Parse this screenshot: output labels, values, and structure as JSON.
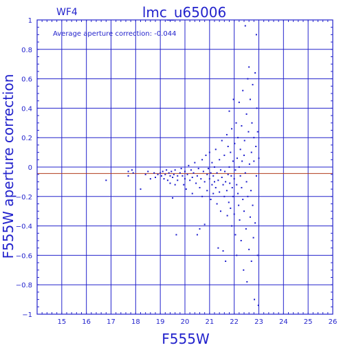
{
  "chart_data": {
    "type": "scatter",
    "panel_label": "WF4",
    "title": "lmc_u65006",
    "annotation": "Average aperture correction: -0.044",
    "average_correction": -0.044,
    "xlabel": "F555W",
    "ylabel": "F555W aperture correction",
    "xlim": [
      14,
      26
    ],
    "ylim": [
      -1,
      1
    ],
    "xticks": [
      15,
      16,
      17,
      18,
      19,
      20,
      21,
      22,
      23,
      24,
      25,
      26
    ],
    "yticks": [
      -1,
      -0.8,
      -0.6,
      -0.4,
      -0.2,
      0,
      0.2,
      0.4,
      0.6,
      0.8,
      1
    ],
    "ytick_labels": [
      "−1",
      "−0.8",
      "−0.6",
      "−0.4",
      "−0.2",
      "0",
      "0.2",
      "0.4",
      "0.6",
      "0.8",
      "1"
    ],
    "grid": true,
    "colors": {
      "axis": "#2222cc",
      "points": "#1a1acc",
      "mean_line": "#b03a1a"
    },
    "points": [
      [
        16.8,
        -0.09
      ],
      [
        17.7,
        -0.03
      ],
      [
        17.7,
        -0.06
      ],
      [
        17.85,
        -0.02
      ],
      [
        17.9,
        -0.04
      ],
      [
        18.2,
        -0.15
      ],
      [
        18.4,
        -0.05
      ],
      [
        18.5,
        -0.03
      ],
      [
        18.6,
        -0.08
      ],
      [
        18.75,
        -0.04
      ],
      [
        18.8,
        -0.07
      ],
      [
        18.9,
        -0.05
      ],
      [
        19.0,
        -0.04
      ],
      [
        19.05,
        -0.06
      ],
      [
        19.1,
        -0.03
      ],
      [
        19.15,
        -0.08
      ],
      [
        19.2,
        -0.05
      ],
      [
        19.25,
        -0.02
      ],
      [
        19.3,
        -0.09
      ],
      [
        19.35,
        -0.04
      ],
      [
        19.4,
        -0.06
      ],
      [
        19.4,
        -0.11
      ],
      [
        19.45,
        -0.03
      ],
      [
        19.5,
        -0.07
      ],
      [
        19.5,
        -0.21
      ],
      [
        19.55,
        -0.05
      ],
      [
        19.6,
        -0.12
      ],
      [
        19.6,
        -0.02
      ],
      [
        19.65,
        -0.46
      ],
      [
        19.7,
        -0.06
      ],
      [
        19.7,
        -0.09
      ],
      [
        19.8,
        -0.04
      ],
      [
        19.85,
        -0.01
      ],
      [
        19.9,
        -0.06
      ],
      [
        19.95,
        -0.12
      ],
      [
        20.0,
        -0.03
      ],
      [
        20.0,
        -0.08
      ],
      [
        20.05,
        -0.15
      ],
      [
        20.1,
        -0.05
      ],
      [
        20.15,
        0.01
      ],
      [
        20.2,
        -0.09
      ],
      [
        20.25,
        -0.02
      ],
      [
        20.3,
        -0.07
      ],
      [
        20.3,
        -0.18
      ],
      [
        20.35,
        -0.04
      ],
      [
        20.4,
        0.03
      ],
      [
        20.45,
        -0.11
      ],
      [
        20.5,
        -0.06
      ],
      [
        20.5,
        -0.46
      ],
      [
        20.55,
        -0.01
      ],
      [
        20.6,
        -0.14
      ],
      [
        20.6,
        -0.42
      ],
      [
        20.65,
        -0.08
      ],
      [
        20.7,
        0.05
      ],
      [
        20.7,
        -0.2
      ],
      [
        20.75,
        -0.03
      ],
      [
        20.8,
        -0.1
      ],
      [
        20.8,
        -0.39
      ],
      [
        20.85,
        0.08
      ],
      [
        20.9,
        -0.05
      ],
      [
        20.9,
        -0.16
      ],
      [
        20.95,
        -0.01
      ],
      [
        21.0,
        -0.08
      ],
      [
        21.0,
        0.1
      ],
      [
        21.05,
        -0.22
      ],
      [
        21.05,
        -0.04
      ],
      [
        21.1,
        -0.12
      ],
      [
        21.1,
        0.03
      ],
      [
        21.15,
        -0.18
      ],
      [
        21.15,
        -0.06
      ],
      [
        21.2,
        -0.1
      ],
      [
        21.2,
        0.0
      ],
      [
        21.25,
        -0.14
      ],
      [
        21.25,
        0.12
      ],
      [
        21.3,
        -0.25
      ],
      [
        21.3,
        -0.04
      ],
      [
        21.35,
        -0.55
      ],
      [
        21.35,
        -0.09
      ],
      [
        21.4,
        0.05
      ],
      [
        21.4,
        -0.17
      ],
      [
        21.45,
        -0.02
      ],
      [
        21.45,
        -0.3
      ],
      [
        21.5,
        -0.07
      ],
      [
        21.5,
        0.18
      ],
      [
        21.55,
        -0.12
      ],
      [
        21.55,
        -0.57
      ],
      [
        21.6,
        -0.2
      ],
      [
        21.6,
        0.08
      ],
      [
        21.62,
        -0.03
      ],
      [
        21.65,
        -0.64
      ],
      [
        21.65,
        -0.1
      ],
      [
        21.7,
        0.22
      ],
      [
        21.7,
        -0.16
      ],
      [
        21.72,
        -0.33
      ],
      [
        21.75,
        -0.05
      ],
      [
        21.75,
        0.14
      ],
      [
        21.78,
        -0.24
      ],
      [
        21.8,
        0.0
      ],
      [
        21.8,
        0.38
      ],
      [
        21.82,
        -0.11
      ],
      [
        21.85,
        0.1
      ],
      [
        21.85,
        -0.28
      ],
      [
        21.88,
        -0.06
      ],
      [
        21.9,
        0.26
      ],
      [
        21.9,
        -0.4
      ],
      [
        21.92,
        -0.14
      ],
      [
        21.95,
        0.04
      ],
      [
        21.95,
        -0.2
      ],
      [
        21.97,
        0.46
      ],
      [
        22.0,
        -0.08
      ],
      [
        22.0,
        -0.32
      ],
      [
        22.02,
        0.16
      ],
      [
        22.05,
        -0.02
      ],
      [
        22.05,
        -0.46
      ],
      [
        22.08,
        0.3
      ],
      [
        22.1,
        -0.12
      ],
      [
        22.1,
        -0.6
      ],
      [
        22.12,
        0.06
      ],
      [
        22.15,
        -0.18
      ],
      [
        22.15,
        0.2
      ],
      [
        22.18,
        -0.26
      ],
      [
        22.2,
        0.0
      ],
      [
        22.2,
        0.44
      ],
      [
        22.22,
        -0.36
      ],
      [
        22.25,
        -0.06
      ],
      [
        22.25,
        0.12
      ],
      [
        22.28,
        -0.5
      ],
      [
        22.3,
        0.28
      ],
      [
        22.3,
        -0.14
      ],
      [
        22.32,
        0.04
      ],
      [
        22.35,
        -0.22
      ],
      [
        22.35,
        0.52
      ],
      [
        22.38,
        -0.7
      ],
      [
        22.4,
        0.08
      ],
      [
        22.4,
        -0.3
      ],
      [
        22.42,
        0.18
      ],
      [
        22.45,
        0.96
      ],
      [
        22.45,
        -0.04
      ],
      [
        22.48,
        -0.42
      ],
      [
        22.5,
        0.36
      ],
      [
        22.5,
        -0.1
      ],
      [
        22.52,
        -0.78
      ],
      [
        22.55,
        0.6
      ],
      [
        22.55,
        -0.2
      ],
      [
        22.58,
        0.24
      ],
      [
        22.6,
        -0.56
      ],
      [
        22.6,
        0.68
      ],
      [
        22.62,
        0.02
      ],
      [
        22.65,
        -0.34
      ],
      [
        22.65,
        0.46
      ],
      [
        22.68,
        -0.16
      ],
      [
        22.7,
        0.1
      ],
      [
        22.7,
        -0.64
      ],
      [
        22.72,
        0.3
      ],
      [
        22.75,
        -0.26
      ],
      [
        22.75,
        0.56
      ],
      [
        22.78,
        -0.48
      ],
      [
        22.8,
        0.04
      ],
      [
        22.8,
        0.2
      ],
      [
        22.82,
        -0.9
      ],
      [
        22.85,
        -0.38
      ],
      [
        22.85,
        0.64
      ],
      [
        22.88,
        0.14
      ],
      [
        22.9,
        -0.06
      ],
      [
        22.9,
        0.9
      ],
      [
        22.92,
        0.4
      ],
      [
        22.95,
        -0.6
      ],
      [
        22.95,
        0.24
      ],
      [
        22.98,
        -0.94
      ],
      [
        23.0,
        0.06
      ]
    ]
  }
}
